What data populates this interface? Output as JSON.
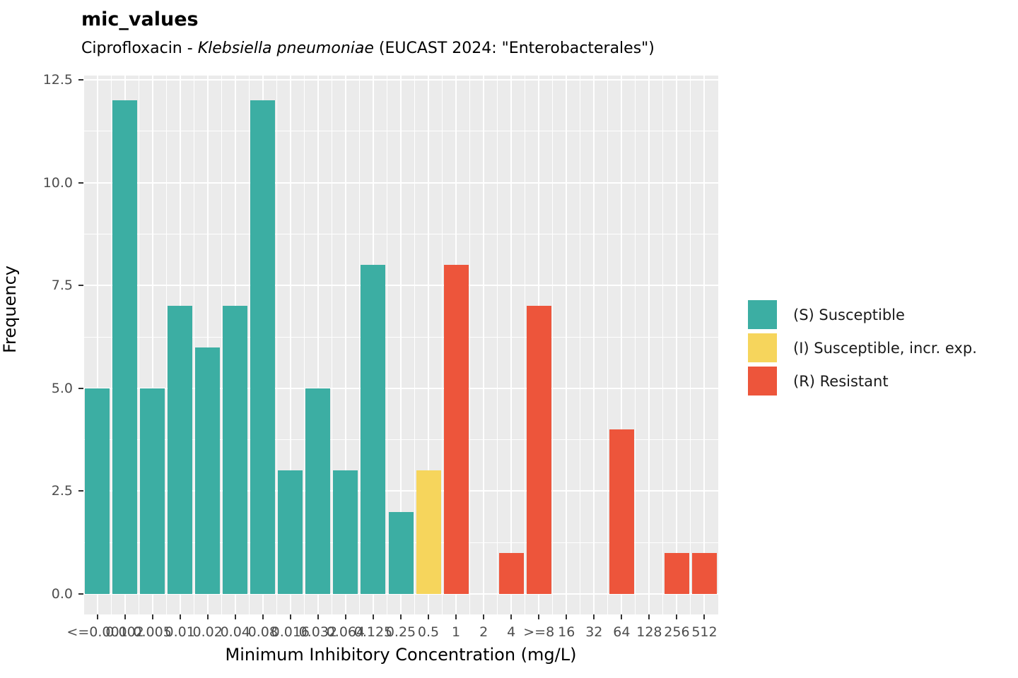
{
  "header": {
    "title": "mic_values",
    "subtitle_prefix": "Ciprofloxacin - ",
    "subtitle_italic": "Klebsiella pneumoniae",
    "subtitle_suffix": " (EUCAST 2024: \"Enterobacterales\")"
  },
  "chart_data": {
    "type": "bar",
    "title": "mic_values",
    "subtitle": "Ciprofloxacin - Klebsiella pneumoniae (EUCAST 2024: \"Enterobacterales\")",
    "xlabel": "Minimum Inhibitory Concentration (mg/L)",
    "ylabel": "Frequency",
    "categories": [
      "<=0.001",
      "0.002",
      "0.005",
      "0.01",
      "0.02",
      "0.04",
      "0.08",
      "0.016",
      "0.032",
      "0.064",
      "0.125",
      "0.25",
      "0.5",
      "1",
      "2",
      "4",
      ">=8",
      "16",
      "32",
      "64",
      "128",
      "256",
      "512"
    ],
    "values": [
      5,
      12,
      5,
      7,
      6,
      7,
      12,
      3,
      5,
      3,
      8,
      2,
      3,
      8,
      0,
      1,
      7,
      0,
      0,
      4,
      0,
      1,
      1
    ],
    "classes": [
      "S",
      "S",
      "S",
      "S",
      "S",
      "S",
      "S",
      "S",
      "S",
      "S",
      "S",
      "S",
      "I",
      "R",
      "R",
      "R",
      "R",
      "R",
      "R",
      "R",
      "R",
      "R",
      "R"
    ],
    "ylim": [
      0,
      12.5
    ],
    "yticks": [
      "0.0",
      "2.5",
      "5.0",
      "7.5",
      "10.0",
      "12.5"
    ],
    "ytick_values": [
      0,
      2.5,
      5,
      7.5,
      10,
      12.5
    ],
    "yminor_values": [
      1.25,
      3.75,
      6.25,
      8.75,
      11.25
    ],
    "grid": true,
    "legend_position": "right",
    "legend": [
      {
        "class": "S",
        "label": "(S) Susceptible",
        "color": "#3CAEA3"
      },
      {
        "class": "I",
        "label": "(I) Susceptible, incr. exp.",
        "color": "#F6D55C"
      },
      {
        "class": "R",
        "label": "(R) Resistant",
        "color": "#ED553B"
      }
    ],
    "colors": {
      "S": "#3CAEA3",
      "I": "#F6D55C",
      "R": "#ED553B"
    },
    "panel_background": "#EBEBEB",
    "grid_color": "#FFFFFF",
    "axis_text_color": "#4D4D4D",
    "tick_color": "#333333"
  }
}
